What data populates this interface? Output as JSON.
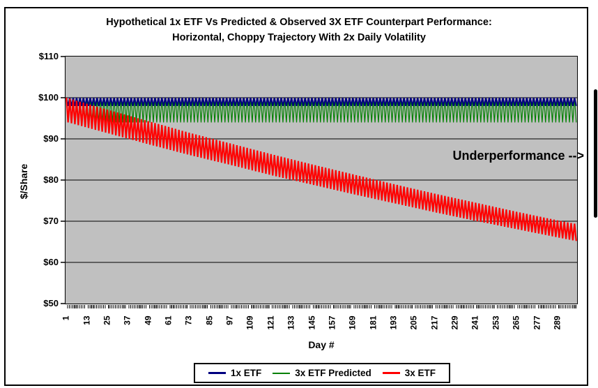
{
  "chart": {
    "title_line1": "Hypothetical 1x ETF Vs Predicted & Observed 3X ETF Counterpart Performance:",
    "title_line2": "Horizontal, Choppy Trajectory With 2x Daily Volatility",
    "annotation": "Underperformance -->",
    "plot_bg_color": "#C0C0C0",
    "gridline_color": "#000000",
    "y_axis": {
      "label": "$/Share",
      "tick_labels": [
        "$110",
        "$100",
        "$90",
        "$80",
        "$70",
        "$60",
        "$50"
      ]
    },
    "x_axis": {
      "label": "Day #",
      "tick_labels": [
        "1",
        "13",
        "25",
        "37",
        "49",
        "61",
        "73",
        "85",
        "97",
        "109",
        "121",
        "133",
        "145",
        "157",
        "169",
        "181",
        "193",
        "205",
        "217",
        "229",
        "241",
        "253",
        "265",
        "277",
        "289"
      ]
    },
    "legend": [
      {
        "label": "1x ETF",
        "color": "#000080",
        "sample_thickness": 3
      },
      {
        "label": "3x ETF Predicted",
        "color": "#008000",
        "sample_thickness": 2
      },
      {
        "label": "3x ETF",
        "color": "#FF0000",
        "sample_thickness": 3
      }
    ]
  },
  "chart_data": {
    "type": "line",
    "title": "Hypothetical 1x ETF Vs Predicted & Observed 3X ETF Counterpart Performance: Horizontal, Choppy Trajectory With 2x Daily Volatility",
    "xlabel": "Day #",
    "ylabel": "$/Share",
    "xlim": [
      1,
      300
    ],
    "ylim": [
      50,
      110
    ],
    "y_tick_step": 10,
    "x_tick_interval": 12,
    "grid": "horizontal",
    "legend_position": "bottom",
    "description": "Each series alternates daily between its top and bottom envelope (choppy 2x daily volatility of the 1x ETF, so 1x moves ±2%/day, 3x moves ±6%/day). 1x and predicted 3x stay horizontal; observed 3x decays from volatility drag.",
    "series": [
      {
        "name": "1x ETF",
        "color": "#000080",
        "stroke_width": 2,
        "pattern": "daily_zigzag",
        "top_envelope": [
          [
            1,
            100
          ],
          [
            299,
            100
          ]
        ],
        "bottom_envelope": [
          [
            2,
            98
          ],
          [
            300,
            98
          ]
        ]
      },
      {
        "name": "3x ETF Predicted",
        "color": "#008000",
        "stroke_width": 1.2,
        "pattern": "daily_zigzag",
        "top_envelope": [
          [
            1,
            100
          ],
          [
            299,
            100
          ]
        ],
        "bottom_envelope": [
          [
            2,
            94
          ],
          [
            300,
            94
          ]
        ]
      },
      {
        "name": "3x ETF",
        "color": "#FF0000",
        "stroke_width": 2.2,
        "pattern": "daily_zigzag",
        "top_envelope": [
          [
            1,
            100
          ],
          [
            25,
            97.1
          ],
          [
            49,
            94.3
          ],
          [
            73,
            91.5
          ],
          [
            97,
            88.9
          ],
          [
            121,
            86.3
          ],
          [
            145,
            83.8
          ],
          [
            169,
            81.4
          ],
          [
            193,
            79.0
          ],
          [
            217,
            76.7
          ],
          [
            241,
            74.5
          ],
          [
            265,
            72.3
          ],
          [
            289,
            70.2
          ],
          [
            299,
            69.4
          ]
        ],
        "bottom_envelope": [
          [
            2,
            94.0
          ],
          [
            26,
            91.3
          ],
          [
            50,
            88.6
          ],
          [
            74,
            86.0
          ],
          [
            98,
            83.6
          ],
          [
            122,
            81.1
          ],
          [
            146,
            78.8
          ],
          [
            170,
            76.5
          ],
          [
            194,
            74.3
          ],
          [
            218,
            72.1
          ],
          [
            242,
            70.0
          ],
          [
            266,
            68.0
          ],
          [
            290,
            66.0
          ],
          [
            300,
            65.2
          ]
        ]
      }
    ]
  }
}
